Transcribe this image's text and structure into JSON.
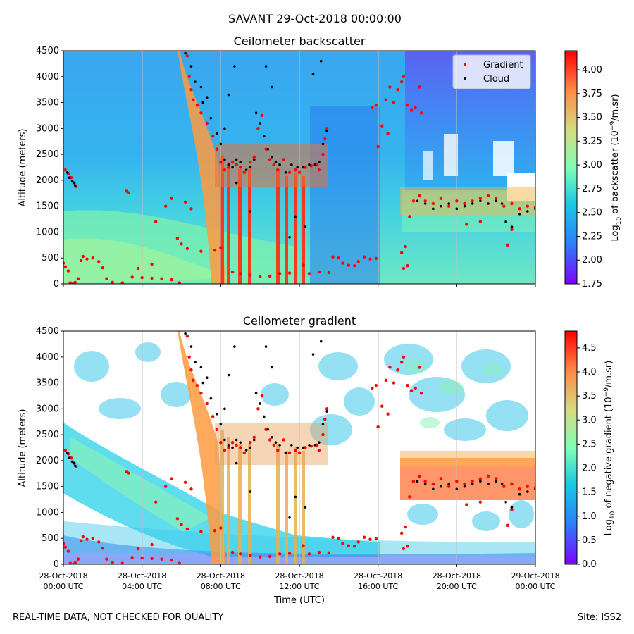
{
  "figure": {
    "suptitle": "SAVANT 29-Oct-2018 00:00:00",
    "footer_left": "REAL-TIME DATA, NOT CHECKED FOR QUALITY",
    "footer_right": "Site: ISS2"
  },
  "chart_data": [
    {
      "type": "heatmap",
      "title": "Ceilometer backscatter",
      "xlabel": "",
      "ylabel": "Altitude (meters)",
      "x_hours_range": [
        0,
        24
      ],
      "ylim": [
        0,
        4500
      ],
      "yticks": [
        0,
        500,
        1000,
        1500,
        2000,
        2500,
        3000,
        3500,
        4000,
        4500
      ],
      "colorbar": {
        "label_prefix": "Log",
        "label_sub": "10",
        "label_mid": " of backscatter (10",
        "label_sup": "−9",
        "label_suffix": "/m.sr)",
        "range": [
          1.75,
          4.2
        ],
        "ticks": [
          "1.75",
          "2.00",
          "2.25",
          "2.50",
          "2.75",
          "3.00",
          "3.25",
          "3.50",
          "3.75",
          "4.00"
        ],
        "tick_values": [
          1.75,
          2.0,
          2.25,
          2.5,
          2.75,
          3.0,
          3.25,
          3.5,
          3.75,
          4.0
        ]
      },
      "legend": {
        "position": "top-right",
        "entries": [
          {
            "label": "Gradient",
            "color": "#ff0000"
          },
          {
            "label": "Cloud",
            "color": "#000000"
          }
        ]
      },
      "series": [
        {
          "name": "Gradient",
          "points": [
            [
              0.0,
              400
            ],
            [
              0.1,
              330
            ],
            [
              0.25,
              250
            ],
            [
              0.35,
              20
            ],
            [
              0.5,
              0
            ],
            [
              0.6,
              30
            ],
            [
              0.75,
              100
            ],
            [
              0.9,
              450
            ],
            [
              1.0,
              530
            ],
            [
              1.2,
              480
            ],
            [
              1.5,
              500
            ],
            [
              1.8,
              430
            ],
            [
              2.0,
              310
            ],
            [
              2.2,
              100
            ],
            [
              2.5,
              30
            ],
            [
              3.0,
              20
            ],
            [
              3.5,
              130
            ],
            [
              4.0,
              120
            ],
            [
              4.5,
              110
            ],
            [
              5.0,
              100
            ],
            [
              5.5,
              80
            ],
            [
              5.9,
              20
            ],
            [
              0.1,
              2200
            ],
            [
              0.25,
              2130
            ],
            [
              0.4,
              2050
            ],
            [
              0.55,
              1950
            ],
            [
              0.65,
              1880
            ],
            [
              3.2,
              1790
            ],
            [
              3.3,
              1760
            ],
            [
              3.8,
              300
            ],
            [
              4.5,
              380
            ],
            [
              4.7,
              1200
            ],
            [
              5.2,
              1500
            ],
            [
              5.5,
              1650
            ],
            [
              6.2,
              1580
            ],
            [
              6.5,
              1450
            ],
            [
              5.8,
              880
            ],
            [
              6.0,
              770
            ],
            [
              6.3,
              680
            ],
            [
              7.0,
              630
            ],
            [
              7.7,
              650
            ],
            [
              8.0,
              700
            ],
            [
              6.3,
              4400
            ],
            [
              6.4,
              4000
            ],
            [
              6.5,
              3750
            ],
            [
              6.6,
              3550
            ],
            [
              6.8,
              3450
            ],
            [
              7.0,
              3300
            ],
            [
              7.3,
              3100
            ],
            [
              7.6,
              2850
            ],
            [
              7.8,
              2600
            ],
            [
              8.0,
              2350
            ],
            [
              8.2,
              2200
            ],
            [
              8.4,
              2250
            ],
            [
              8.6,
              2350
            ],
            [
              8.8,
              2300
            ],
            [
              9.0,
              2250
            ],
            [
              9.2,
              2150
            ],
            [
              9.5,
              2350
            ],
            [
              9.7,
              2450
            ],
            [
              9.9,
              3000
            ],
            [
              10.1,
              3250
            ],
            [
              10.3,
              2600
            ],
            [
              10.5,
              2400
            ],
            [
              10.7,
              2300
            ],
            [
              10.9,
              2200
            ],
            [
              11.2,
              2400
            ],
            [
              11.5,
              2150
            ],
            [
              11.8,
              2200
            ],
            [
              12.0,
              2150
            ],
            [
              12.3,
              2250
            ],
            [
              12.6,
              2280
            ],
            [
              12.9,
              2300
            ],
            [
              13.0,
              2200
            ],
            [
              13.2,
              2500
            ],
            [
              13.3,
              2800
            ],
            [
              13.4,
              3000
            ],
            [
              8.6,
              230
            ],
            [
              9.0,
              200
            ],
            [
              9.5,
              170
            ],
            [
              10.0,
              140
            ],
            [
              10.5,
              150
            ],
            [
              11.0,
              200
            ],
            [
              11.5,
              210
            ],
            [
              12.5,
              200
            ],
            [
              13.0,
              230
            ],
            [
              13.5,
              220
            ],
            [
              12.2,
              360
            ],
            [
              13.7,
              520
            ],
            [
              14.0,
              500
            ],
            [
              14.2,
              400
            ],
            [
              14.5,
              360
            ],
            [
              14.8,
              350
            ],
            [
              15.0,
              430
            ],
            [
              15.3,
              520
            ],
            [
              15.6,
              480
            ],
            [
              15.9,
              490
            ],
            [
              15.7,
              3400
            ],
            [
              15.9,
              3450
            ],
            [
              16.0,
              2650
            ],
            [
              16.2,
              3050
            ],
            [
              16.4,
              3550
            ],
            [
              16.6,
              3800
            ],
            [
              16.5,
              2900
            ],
            [
              16.8,
              3500
            ],
            [
              17.0,
              3750
            ],
            [
              17.2,
              3900
            ],
            [
              17.3,
              4000
            ],
            [
              17.5,
              3450
            ],
            [
              17.7,
              3350
            ],
            [
              17.9,
              3400
            ],
            [
              18.1,
              3800
            ],
            [
              18.2,
              3300
            ],
            [
              17.2,
              600
            ],
            [
              17.4,
              720
            ],
            [
              17.6,
              1300
            ],
            [
              17.3,
              300
            ],
            [
              17.5,
              350
            ],
            [
              17.8,
              1600
            ],
            [
              18.1,
              1700
            ],
            [
              18.4,
              1600
            ],
            [
              18.8,
              1550
            ],
            [
              19.2,
              1650
            ],
            [
              19.6,
              1500
            ],
            [
              20.0,
              1600
            ],
            [
              20.4,
              1550
            ],
            [
              20.8,
              1600
            ],
            [
              21.2,
              1650
            ],
            [
              21.6,
              1700
            ],
            [
              22.0,
              1650
            ],
            [
              22.4,
              1500
            ],
            [
              22.8,
              1550
            ],
            [
              23.2,
              1450
            ],
            [
              23.6,
              1500
            ],
            [
              24.0,
              1480
            ],
            [
              20.5,
              1150
            ],
            [
              21.2,
              1200
            ],
            [
              22.6,
              750
            ],
            [
              22.8,
              1050
            ]
          ]
        },
        {
          "name": "Cloud",
          "points": [
            [
              0.2,
              2150
            ],
            [
              0.3,
              2050
            ],
            [
              0.45,
              1980
            ],
            [
              0.55,
              1950
            ],
            [
              0.6,
              1900
            ],
            [
              6.2,
              4450
            ],
            [
              6.5,
              4200
            ],
            [
              6.7,
              3900
            ],
            [
              7.0,
              3800
            ],
            [
              7.1,
              3500
            ],
            [
              7.3,
              3600
            ],
            [
              7.5,
              3200
            ],
            [
              7.8,
              2900
            ],
            [
              8.0,
              2700
            ],
            [
              8.2,
              2400
            ],
            [
              8.4,
              2300
            ],
            [
              8.6,
              2250
            ],
            [
              8.8,
              2400
            ],
            [
              9.0,
              2350
            ],
            [
              9.3,
              2200
            ],
            [
              9.5,
              2250
            ],
            [
              9.7,
              2400
            ],
            [
              9.8,
              3300
            ],
            [
              10.0,
              3100
            ],
            [
              10.2,
              2850
            ],
            [
              10.4,
              2600
            ],
            [
              10.6,
              2450
            ],
            [
              10.8,
              2350
            ],
            [
              11.0,
              2300
            ],
            [
              11.3,
              2150
            ],
            [
              11.6,
              2300
            ],
            [
              11.9,
              2250
            ],
            [
              12.2,
              2250
            ],
            [
              12.5,
              2300
            ],
            [
              12.8,
              2300
            ],
            [
              13.0,
              2350
            ],
            [
              13.2,
              2700
            ],
            [
              13.4,
              2950
            ],
            [
              8.8,
              1950
            ],
            [
              9.5,
              1400
            ],
            [
              11.5,
              900
            ],
            [
              11.8,
              1300
            ],
            [
              12.3,
              1100
            ],
            [
              8.2,
              3000
            ],
            [
              8.4,
              3650
            ],
            [
              8.7,
              4200
            ],
            [
              10.3,
              4200
            ],
            [
              10.6,
              3800
            ],
            [
              12.7,
              4050
            ],
            [
              13.1,
              4300
            ],
            [
              18.0,
              1600
            ],
            [
              18.4,
              1550
            ],
            [
              18.8,
              1450
            ],
            [
              19.2,
              1500
            ],
            [
              19.6,
              1550
            ],
            [
              20.0,
              1450
            ],
            [
              20.4,
              1500
            ],
            [
              20.8,
              1550
            ],
            [
              21.2,
              1600
            ],
            [
              21.6,
              1550
            ],
            [
              22.0,
              1600
            ],
            [
              22.3,
              1550
            ],
            [
              22.5,
              1200
            ],
            [
              22.8,
              1100
            ],
            [
              23.2,
              1350
            ],
            [
              23.6,
              1400
            ],
            [
              24.0,
              1450
            ]
          ]
        }
      ]
    },
    {
      "type": "heatmap",
      "title": "Ceilometer gradient",
      "xlabel": "Time (UTC)",
      "ylabel": "Altitude (meters)",
      "x_hours_range": [
        0,
        24
      ],
      "ylim": [
        0,
        4500
      ],
      "yticks": [
        0,
        500,
        1000,
        1500,
        2000,
        2500,
        3000,
        3500,
        4000,
        4500
      ],
      "xtick_hours": [
        0,
        4,
        8,
        12,
        16,
        20,
        24
      ],
      "xticks": [
        {
          "date": "28-Oct-2018",
          "time": "00:00 UTC"
        },
        {
          "date": "28-Oct-2018",
          "time": "04:00 UTC"
        },
        {
          "date": "28-Oct-2018",
          "time": "08:00 UTC"
        },
        {
          "date": "28-Oct-2018",
          "time": "12:00 UTC"
        },
        {
          "date": "28-Oct-2018",
          "time": "16:00 UTC"
        },
        {
          "date": "28-Oct-2018",
          "time": "20:00 UTC"
        },
        {
          "date": "29-Oct-2018",
          "time": "00:00 UTC"
        }
      ],
      "colorbar": {
        "label_prefix": "Log",
        "label_sub": "10",
        "label_mid": " of negative gradient (10",
        "label_sup": "−9",
        "label_suffix": "/m.sr)",
        "range": [
          0.0,
          4.85
        ],
        "ticks": [
          "0.0",
          "0.5",
          "1.0",
          "1.5",
          "2.0",
          "2.5",
          "3.0",
          "3.5",
          "4.0",
          "4.5"
        ],
        "tick_values": [
          0.0,
          0.5,
          1.0,
          1.5,
          2.0,
          2.5,
          3.0,
          3.5,
          4.0,
          4.5
        ]
      },
      "series_same_as_upper": true
    }
  ]
}
